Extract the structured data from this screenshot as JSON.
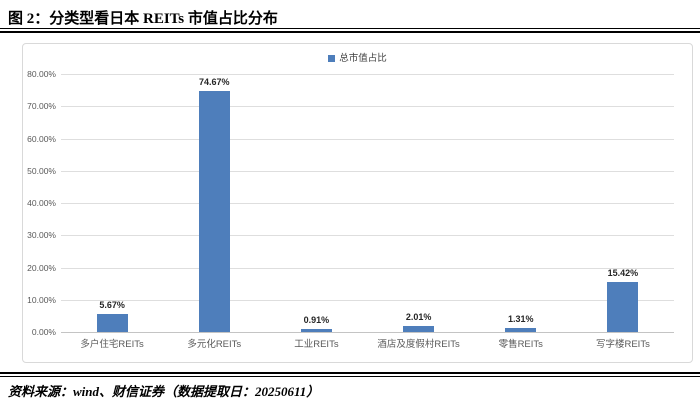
{
  "header": {
    "title": "图 2：分类型看日本 REITs 市值占比分布"
  },
  "footer": {
    "source": "资料来源：wind、财信证券（数据提取日：20250611）"
  },
  "chart_data": {
    "type": "bar",
    "title": "图 2：分类型看日本 REITs 市值占比分布",
    "legend": [
      "总市值占比"
    ],
    "legend_position": "top-center",
    "categories": [
      "多户住宅REITs",
      "多元化REITs",
      "工业REITs",
      "酒店及度假村REITs",
      "零售REITs",
      "写字楼REITs"
    ],
    "series": [
      {
        "name": "总市值占比",
        "values": [
          5.67,
          74.67,
          0.91,
          2.01,
          1.31,
          15.42
        ]
      }
    ],
    "value_labels": [
      "5.67%",
      "74.67%",
      "0.91%",
      "2.01%",
      "1.31%",
      "15.42%"
    ],
    "ylim": [
      0,
      80
    ],
    "ytick_step": 10,
    "ytick_labels": [
      "0.00%",
      "10.00%",
      "20.00%",
      "30.00%",
      "40.00%",
      "50.00%",
      "60.00%",
      "70.00%",
      "80.00%"
    ],
    "grid": "horizontal",
    "colors": {
      "bar": "#4E7EBB",
      "gridline": "#DEDEDE",
      "axis_line": "#C4C4C4",
      "tick_text": "#595959",
      "category_text": "#595959",
      "value_label_text": "#262626",
      "legend_text": "#404040",
      "panel_border": "#D9D9D9",
      "rule": "#000000"
    }
  }
}
